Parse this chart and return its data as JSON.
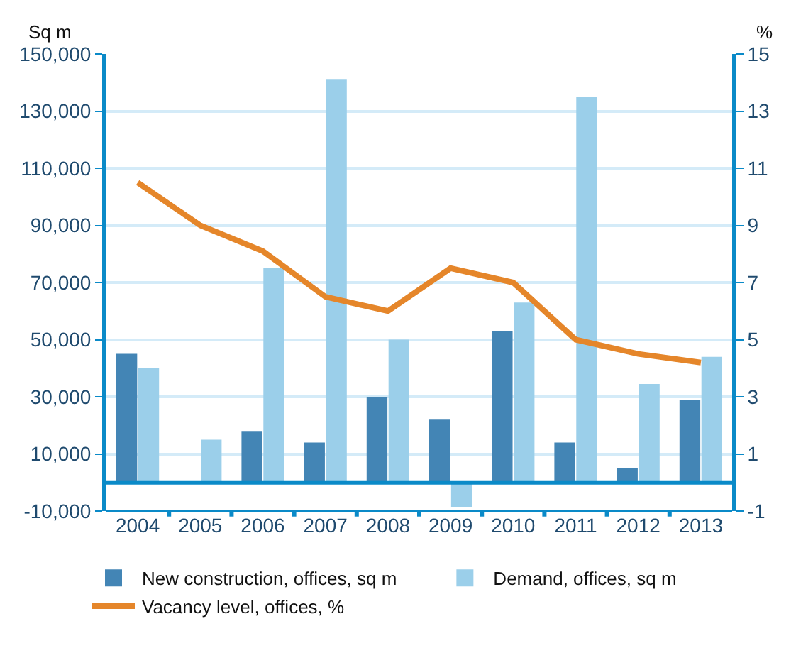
{
  "chart_data": {
    "type": "bar",
    "ylabel": "Sq m",
    "y2label": "%",
    "categories": [
      "2004",
      "2005",
      "2006",
      "2007",
      "2008",
      "2009",
      "2010",
      "2011",
      "2012",
      "2013"
    ],
    "series": [
      {
        "name": "New construction, offices, sq m",
        "color": "#4385b5",
        "values": [
          45000,
          0,
          18000,
          14000,
          30000,
          22000,
          53000,
          14000,
          5000,
          29000
        ]
      },
      {
        "name": "Demand, offices, sq m",
        "color": "#9bcfea",
        "values": [
          40000,
          15000,
          75000,
          141000,
          50000,
          -8500,
          63000,
          135000,
          34500,
          44000
        ]
      },
      {
        "name": "Vacancy level, offices, %",
        "color": "#e5862a",
        "type": "line",
        "axis": "y2",
        "values": [
          10.5,
          9,
          8.1,
          6.5,
          6,
          7.5,
          7,
          5,
          4.5,
          4.2
        ]
      }
    ],
    "ylim": [
      -10000,
      150000
    ],
    "yticks": [
      {
        "value": -10000,
        "label": "-10,000"
      },
      {
        "value": 10000,
        "label": "10,000"
      },
      {
        "value": 30000,
        "label": "30,000"
      },
      {
        "value": 50000,
        "label": "50,000"
      },
      {
        "value": 70000,
        "label": "70,000"
      },
      {
        "value": 90000,
        "label": "90,000"
      },
      {
        "value": 110000,
        "label": "110,000"
      },
      {
        "value": 130000,
        "label": "130,000"
      },
      {
        "value": 150000,
        "label": "150,000"
      }
    ],
    "y2lim": [
      -1,
      15
    ],
    "y2ticks": [
      -1,
      1,
      3,
      5,
      7,
      9,
      11,
      13,
      15
    ],
    "ref_lines": [
      {
        "axis": "y",
        "value": 0,
        "color": "#0a8ac8"
      }
    ],
    "grid": "y",
    "legend": "bottom",
    "marker": "none"
  }
}
